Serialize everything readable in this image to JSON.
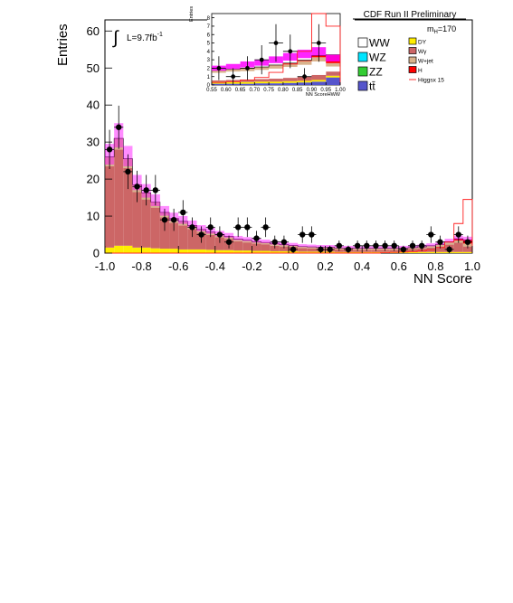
{
  "header": {
    "experiment_label": "CDF Run II Preliminary"
  },
  "annotations": {
    "integral_symbol": "∫",
    "luminosity_prefix": "L=9.7fb",
    "luminosity_exponent": "-1",
    "mass_prefix": "m",
    "mass_subscript": "H",
    "mass_value": "=170"
  },
  "legend": {
    "items": [
      {
        "label": "WW",
        "color": "#ffffff"
      },
      {
        "label": "WZ",
        "color": "#00e5ff"
      },
      {
        "label": "ZZ",
        "color": "#33cc33"
      },
      {
        "label": "tt̄",
        "color": "#5555cc"
      },
      {
        "label": "DY",
        "color": "#ffee00"
      },
      {
        "label": "Wγ",
        "color": "#cc6666"
      },
      {
        "label": "W+jet",
        "color": "#d9b38c"
      },
      {
        "label": "H",
        "color": "#ff0000"
      },
      {
        "label": "Higgsx 15",
        "color": "#ff3333"
      }
    ]
  },
  "chart_data": [
    {
      "type": "bar",
      "role": "main",
      "xlabel": "NN Score",
      "ylabel": "Entries",
      "xlim": [
        -1.0,
        1.0
      ],
      "ylim": [
        0,
        63
      ],
      "xticks": [
        "-1.0",
        "-0.8",
        "-0.6",
        "-0.4",
        "-0.2",
        "-0.0",
        "0.2",
        "0.4",
        "0.6",
        "0.8",
        "1.0"
      ],
      "yticks": [
        "0",
        "10",
        "20",
        "30",
        "40",
        "50",
        "60"
      ],
      "bin_edges": [
        -1.0,
        -0.95,
        -0.9,
        -0.85,
        -0.8,
        -0.75,
        -0.7,
        -0.65,
        -0.6,
        -0.55,
        -0.5,
        -0.45,
        -0.4,
        -0.35,
        -0.3,
        -0.25,
        -0.2,
        -0.15,
        -0.1,
        -0.05,
        0.0,
        0.05,
        0.1,
        0.15,
        0.2,
        0.25,
        0.3,
        0.35,
        0.4,
        0.45,
        0.5,
        0.55,
        0.6,
        0.65,
        0.7,
        0.75,
        0.8,
        0.85,
        0.9,
        0.95,
        1.0
      ],
      "series": [
        {
          "name": "DY",
          "color": "#ffee00",
          "values": [
            1.5,
            2.0,
            2.0,
            1.5,
            1.5,
            1.3,
            1.2,
            1.2,
            1.0,
            1.0,
            1.0,
            0.9,
            0.8,
            0.8,
            0.7,
            0.7,
            0.6,
            0.6,
            0.5,
            0.5,
            0.5,
            0.4,
            0.4,
            0.4,
            0.4,
            0.3,
            0.3,
            0.3,
            0.3,
            0.3,
            0.3,
            0.3,
            0.3,
            0.3,
            0.3,
            0.3,
            0.3,
            0.3,
            0.3,
            0.3
          ]
        },
        {
          "name": "Wγ",
          "color": "#cc6666",
          "values": [
            22,
            26,
            21,
            15,
            13,
            11,
            8.5,
            7,
            6.5,
            5.5,
            4.5,
            4,
            3.5,
            3,
            2.5,
            2.2,
            2.0,
            1.8,
            1.5,
            1.3,
            1.2,
            1.0,
            0.9,
            0.8,
            0.8,
            0.7,
            0.7,
            0.6,
            0.6,
            0.6,
            0.6,
            0.6,
            0.7,
            0.8,
            1.0,
            1.2,
            1.5,
            2.0,
            2.5,
            1.5
          ]
        },
        {
          "name": "W+jet",
          "color": "#d9b38c",
          "values": [
            2.5,
            3.0,
            2.5,
            2.0,
            1.8,
            1.5,
            1.3,
            1.2,
            1.1,
            1.0,
            0.9,
            0.8,
            0.7,
            0.7,
            0.6,
            0.6,
            0.5,
            0.5,
            0.5,
            0.5,
            0.4,
            0.4,
            0.4,
            0.4,
            0.4,
            0.4,
            0.4,
            0.4,
            0.4,
            0.4,
            0.4,
            0.4,
            0.4,
            0.4,
            0.4,
            0.5,
            0.5,
            0.6,
            0.6,
            0.8
          ]
        },
        {
          "name": "H",
          "color": "#ff0000",
          "values": [
            0,
            0,
            0,
            0,
            0,
            0,
            0,
            0,
            0,
            0,
            0,
            0,
            0,
            0,
            0,
            0,
            0,
            0,
            0,
            0,
            0,
            0,
            0,
            0,
            0,
            0,
            0,
            0,
            0,
            0,
            0,
            0,
            0,
            0,
            0,
            0,
            0.1,
            0.2,
            0.5,
            1.0
          ]
        }
      ],
      "higgs_x15": [
        0,
        0,
        0,
        0,
        0,
        0,
        0,
        0,
        0,
        0,
        0,
        0,
        0,
        0,
        0,
        0,
        0,
        0,
        0,
        0,
        0,
        0,
        0,
        0,
        0,
        0,
        0,
        0,
        0,
        0,
        0.1,
        0.2,
        0.3,
        0.4,
        0.6,
        0.9,
        1.5,
        3.0,
        8.0,
        14.5
      ],
      "data_points": {
        "name": "Data",
        "x": [
          -0.975,
          -0.925,
          -0.875,
          -0.825,
          -0.775,
          -0.725,
          -0.675,
          -0.625,
          -0.575,
          -0.525,
          -0.475,
          -0.425,
          -0.375,
          -0.325,
          -0.275,
          -0.225,
          -0.175,
          -0.125,
          -0.075,
          -0.025,
          0.025,
          0.075,
          0.125,
          0.175,
          0.225,
          0.275,
          0.325,
          0.375,
          0.425,
          0.475,
          0.525,
          0.575,
          0.625,
          0.675,
          0.725,
          0.775,
          0.825,
          0.875,
          0.925,
          0.975
        ],
        "y": [
          28,
          34,
          22,
          18,
          17,
          17,
          9,
          9,
          11,
          7,
          5,
          7,
          5,
          3,
          7,
          7,
          4,
          7,
          3,
          3,
          1,
          5,
          5,
          1,
          1,
          2,
          1,
          2,
          2,
          2,
          2,
          2,
          1,
          2,
          2,
          5,
          3,
          1,
          5,
          3
        ]
      }
    },
    {
      "type": "bar",
      "role": "inset",
      "xlabel": "NN ScoreHWW",
      "ylabel": "Entries",
      "xlim": [
        0.55,
        1.0
      ],
      "ylim": [
        0,
        8.5
      ],
      "xticks": [
        "0.55",
        "0.60",
        "0.65",
        "0.70",
        "0.75",
        "0.80",
        "0.85",
        "0.90",
        "0.95",
        "1.00"
      ],
      "yticks": [
        "0",
        "1",
        "2",
        "3",
        "4",
        "5",
        "6",
        "7",
        "8"
      ],
      "bin_edges": [
        0.55,
        0.6,
        0.65,
        0.7,
        0.75,
        0.8,
        0.85,
        0.9,
        0.95,
        1.0
      ],
      "series": [
        {
          "name": "tt̄",
          "color": "#5555cc",
          "values": [
            0.15,
            0.15,
            0.15,
            0.2,
            0.2,
            0.25,
            0.3,
            0.4,
            0.9
          ]
        },
        {
          "name": "DY",
          "color": "#ffee00",
          "values": [
            0.2,
            0.2,
            0.2,
            0.2,
            0.2,
            0.2,
            0.2,
            0.2,
            0.2
          ]
        },
        {
          "name": "Wγ",
          "color": "#cc6666",
          "values": [
            0.2,
            0.25,
            0.3,
            0.3,
            0.35,
            0.4,
            0.5,
            0.6,
            0.5
          ]
        },
        {
          "name": "WW",
          "color": "#ffffff",
          "values": [
            0.9,
            1.0,
            1.0,
            1.1,
            1.2,
            1.3,
            1.4,
            1.6,
            0.6
          ]
        },
        {
          "name": "W+jet",
          "color": "#d9b38c",
          "values": [
            0.3,
            0.3,
            0.35,
            0.35,
            0.4,
            0.4,
            0.45,
            0.5,
            0.4
          ]
        },
        {
          "name": "H",
          "color": "#ff0000",
          "values": [
            0,
            0,
            0,
            0,
            0.02,
            0.05,
            0.1,
            0.2,
            1.0
          ]
        }
      ],
      "band_upper": [
        2.3,
        2.5,
        2.8,
        3.0,
        3.4,
        3.8,
        4.2,
        4.5,
        3.6
      ],
      "band_lower": [
        1.7,
        1.9,
        2.1,
        2.3,
        2.6,
        2.9,
        3.2,
        3.5,
        2.8
      ],
      "higgs_x15": [
        0.3,
        0.4,
        0.6,
        0.9,
        1.5,
        2.5,
        4.0,
        8.5,
        7.0
      ],
      "data_points": {
        "name": "Data",
        "x": [
          0.575,
          0.625,
          0.675,
          0.725,
          0.775,
          0.825,
          0.875,
          0.925
        ],
        "y": [
          2,
          1,
          2,
          3,
          5,
          4,
          1,
          5
        ]
      }
    }
  ]
}
